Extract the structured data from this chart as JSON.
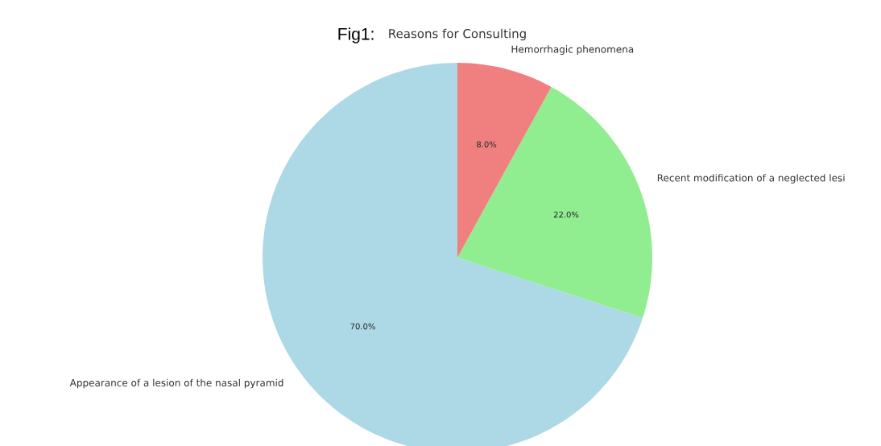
{
  "chart_data": {
    "type": "pie",
    "title": "Reasons for Consulting",
    "annotations": [
      "Fig1:"
    ],
    "categories": [
      "Appearance of a lesion of the nasal pyramid",
      "Recent modification of a neglected lesi",
      "Hemorrhagic phenomena"
    ],
    "values": [
      70,
      22,
      8
    ],
    "value_labels": [
      "70.0%",
      "22.0%",
      "8.0%"
    ],
    "colors": [
      "#add8e6",
      "#90ee90",
      "#f08080"
    ]
  }
}
